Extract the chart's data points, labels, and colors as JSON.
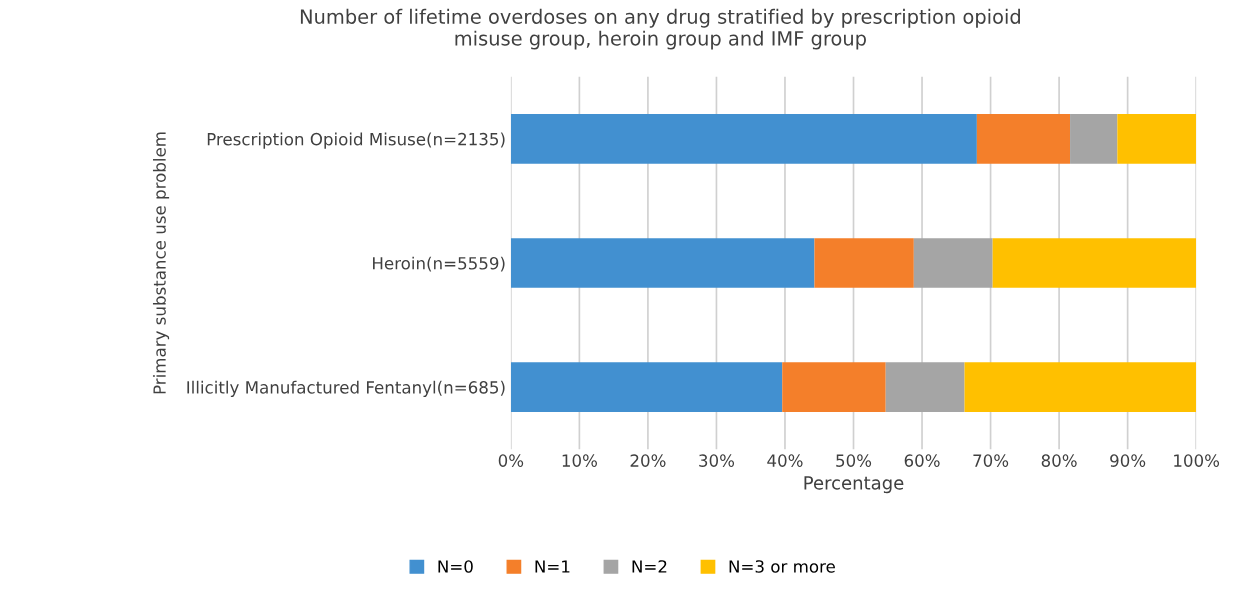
{
  "chart_data": {
    "type": "bar",
    "orientation": "horizontal",
    "stacked": true,
    "title": "Number of lifetime overdoses on any drug stratified by prescription opioid\nmisuse group, heroin group and IMF group",
    "xlabel": "Percentage",
    "ylabel": "Primary substance use problem",
    "categories": [
      "Prescription Opioid Misuse(n=2135)",
      "Heroin(n=5559)",
      "Illicitly Manufactured Fentanyl(n=685)"
    ],
    "series": [
      {
        "name": "N=0",
        "color": "#4290d0",
        "values": [
          68.0,
          44.3,
          39.6
        ]
      },
      {
        "name": "N=1",
        "color": "#f47f2a",
        "values": [
          13.6,
          14.5,
          15.1
        ]
      },
      {
        "name": "N=2",
        "color": "#a5a5a5",
        "values": [
          6.9,
          11.5,
          11.5
        ]
      },
      {
        "name": "N=3 or more",
        "color": "#ffc000",
        "values": [
          11.5,
          29.7,
          33.8
        ]
      }
    ],
    "xlim": [
      0,
      100
    ],
    "xticks": [
      {
        "value": 0,
        "label": "0%"
      },
      {
        "value": 10,
        "label": "10%"
      },
      {
        "value": 20,
        "label": "20%"
      },
      {
        "value": 30,
        "label": "30%"
      },
      {
        "value": 40,
        "label": "40%"
      },
      {
        "value": 50,
        "label": "50%"
      },
      {
        "value": 60,
        "label": "60%"
      },
      {
        "value": 70,
        "label": "70%"
      },
      {
        "value": 80,
        "label": "80%"
      },
      {
        "value": 90,
        "label": "90%"
      },
      {
        "value": 100,
        "label": "100%"
      }
    ],
    "grid": "x",
    "legend": "bottom"
  }
}
